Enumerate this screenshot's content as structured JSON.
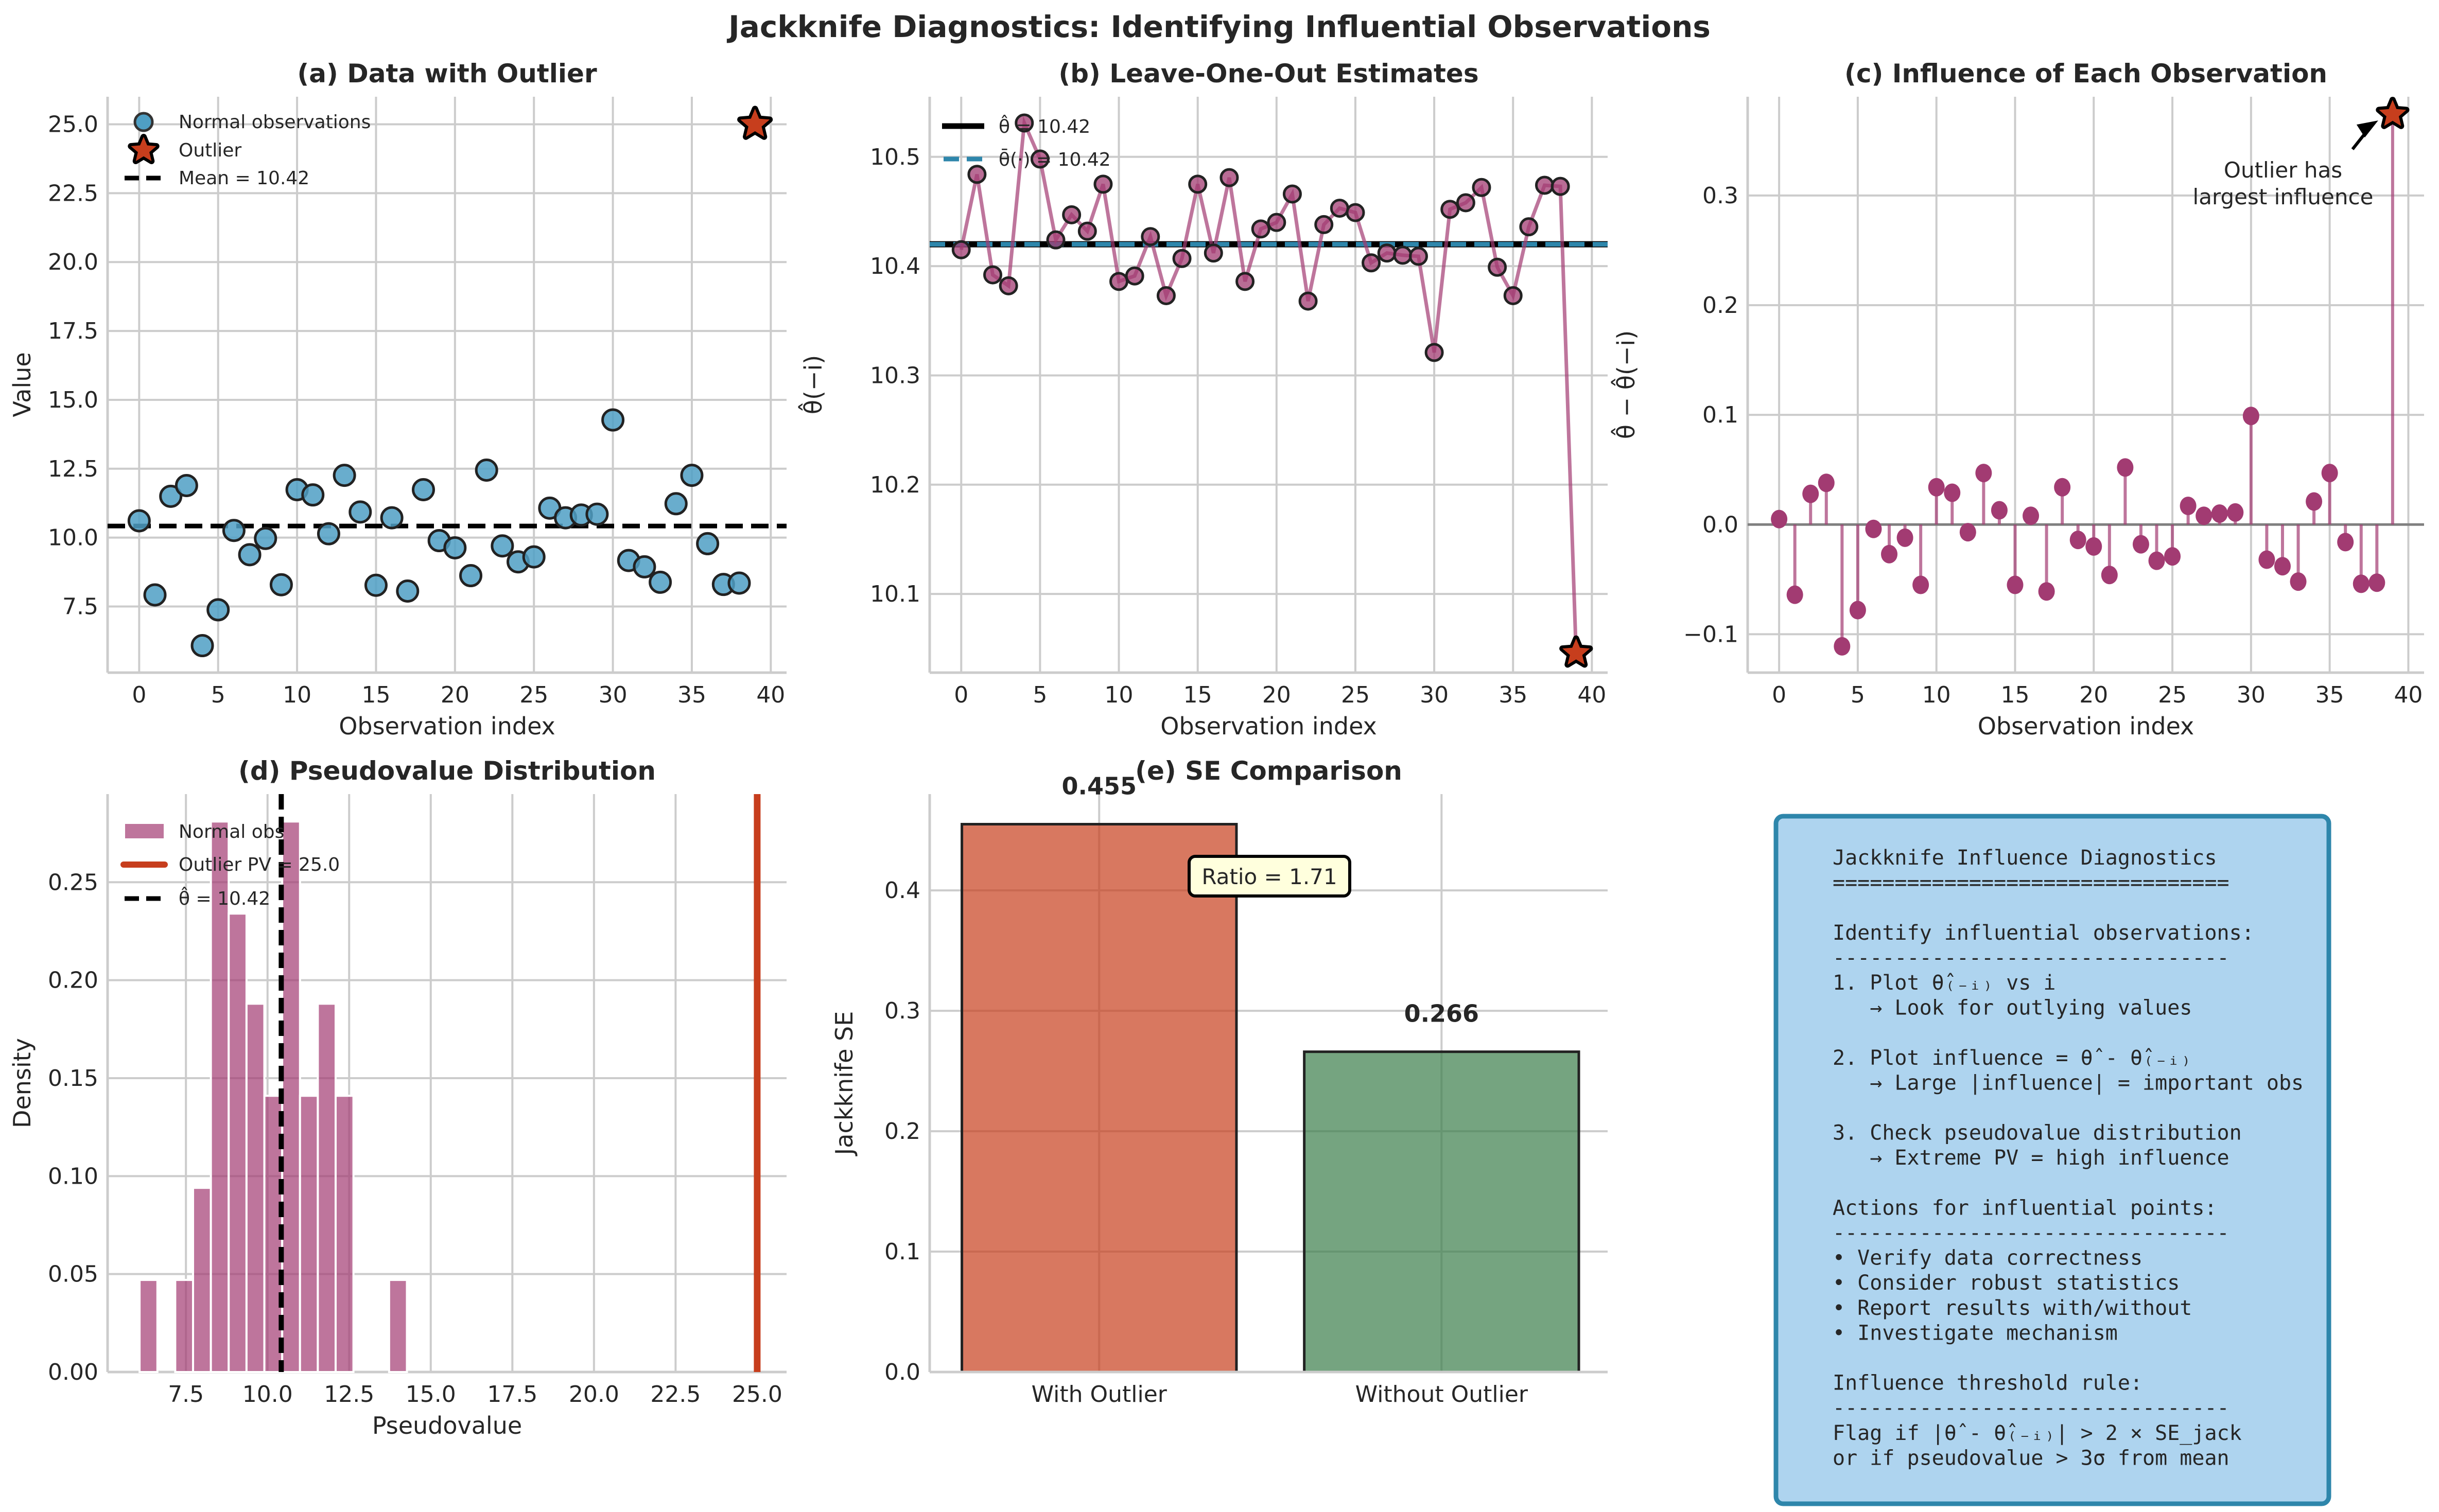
{
  "suptitle": "Jackknife Diagnostics: Identifying Influential Observations",
  "colors": {
    "normal": "#4f9fc4",
    "outlier": "#c73e1d",
    "loo": "#a23b72",
    "theta_bar": "#2e86ab",
    "with_outlier": "#c73e1d",
    "without_outlier": "#3b7d4a",
    "box_fill": "#aed4ef",
    "box_edge": "#2e86ab",
    "ratio_fill": "#ffffdd"
  },
  "chart_data": [
    {
      "id": "a",
      "type": "scatter",
      "title": "(a) Data with Outlier",
      "xlabel": "Observation index",
      "ylabel": "Value",
      "xlim": [
        -2,
        41
      ],
      "ylim": [
        5.1,
        26.0
      ],
      "xticks": [
        "0",
        "5",
        "10",
        "15",
        "20",
        "25",
        "30",
        "35",
        "40"
      ],
      "yticks": [
        "7.5",
        "10.0",
        "12.5",
        "15.0",
        "17.5",
        "20.0",
        "22.5",
        "25.0"
      ],
      "grid": true,
      "legend_position": "top-left",
      "legend": [
        "Normal observations",
        "Outlier",
        "Mean = 10.42"
      ],
      "mean": 10.42,
      "outlier": {
        "x": 39,
        "y": 25.0
      },
      "x": [
        0,
        1,
        2,
        3,
        4,
        5,
        6,
        7,
        8,
        9,
        10,
        11,
        12,
        13,
        14,
        15,
        16,
        17,
        18,
        19,
        20,
        21,
        22,
        23,
        24,
        25,
        26,
        27,
        28,
        29,
        30,
        31,
        32,
        33,
        34,
        35,
        36,
        37,
        38
      ],
      "y": [
        10.61,
        7.92,
        11.5,
        11.89,
        6.08,
        7.38,
        10.26,
        9.38,
        9.97,
        8.29,
        11.74,
        11.55,
        10.14,
        12.26,
        10.93,
        8.27,
        10.72,
        8.06,
        11.74,
        9.89,
        9.63,
        8.62,
        12.45,
        9.7,
        9.12,
        9.3,
        11.07,
        10.72,
        10.82,
        10.85,
        14.27,
        9.17,
        8.94,
        8.38,
        11.23,
        12.26,
        9.78,
        8.3,
        8.35
      ]
    },
    {
      "id": "b",
      "type": "line",
      "title": "(b) Leave-One-Out Estimates",
      "xlabel": "Observation index",
      "ylabel": "θ̂(−i)",
      "xlim": [
        -2,
        41
      ],
      "ylim": [
        10.028,
        10.555
      ],
      "xticks": [
        "0",
        "5",
        "10",
        "15",
        "20",
        "25",
        "30",
        "35",
        "40"
      ],
      "yticks": [
        "10.1",
        "10.2",
        "10.3",
        "10.4",
        "10.5"
      ],
      "grid": true,
      "legend_position": "top-left",
      "legend": [
        "θ̂ = 10.42",
        "θ̄(·) = 10.42"
      ],
      "theta_hat": 10.42,
      "theta_bar": 10.42,
      "x": [
        0,
        1,
        2,
        3,
        4,
        5,
        6,
        7,
        8,
        9,
        10,
        11,
        12,
        13,
        14,
        15,
        16,
        17,
        18,
        19,
        20,
        21,
        22,
        23,
        24,
        25,
        26,
        27,
        28,
        29,
        30,
        31,
        32,
        33,
        34,
        35,
        36,
        37,
        38,
        39
      ],
      "values": [
        10.415,
        10.484,
        10.392,
        10.382,
        10.531,
        10.498,
        10.424,
        10.447,
        10.432,
        10.475,
        10.386,
        10.391,
        10.427,
        10.373,
        10.407,
        10.475,
        10.412,
        10.481,
        10.386,
        10.434,
        10.44,
        10.466,
        10.368,
        10.438,
        10.453,
        10.449,
        10.403,
        10.412,
        10.41,
        10.409,
        10.321,
        10.452,
        10.458,
        10.472,
        10.399,
        10.373,
        10.436,
        10.474,
        10.473,
        10.046
      ],
      "outlier_index": 39
    },
    {
      "id": "c",
      "type": "stem",
      "title": "(c) Influence of Each Observation",
      "xlabel": "Observation index",
      "ylabel": "θ̂ − θ̂(−i)",
      "xlim": [
        -2,
        41
      ],
      "ylim": [
        -0.135,
        0.39
      ],
      "xticks": [
        "0",
        "5",
        "10",
        "15",
        "20",
        "25",
        "30",
        "35",
        "40"
      ],
      "yticks": [
        "−0.1",
        "0.0",
        "0.1",
        "0.2",
        "0.3"
      ],
      "ytick_values": [
        -0.1,
        0.0,
        0.1,
        0.2,
        0.3
      ],
      "grid": true,
      "annotation": [
        "Outlier has",
        "largest influence"
      ],
      "x": [
        0,
        1,
        2,
        3,
        4,
        5,
        6,
        7,
        8,
        9,
        10,
        11,
        12,
        13,
        14,
        15,
        16,
        17,
        18,
        19,
        20,
        21,
        22,
        23,
        24,
        25,
        26,
        27,
        28,
        29,
        30,
        31,
        32,
        33,
        34,
        35,
        36,
        37,
        38,
        39
      ],
      "values": [
        0.005,
        -0.064,
        0.028,
        0.038,
        -0.111,
        -0.078,
        -0.004,
        -0.027,
        -0.012,
        -0.055,
        0.034,
        0.029,
        -0.007,
        0.047,
        0.013,
        -0.055,
        0.008,
        -0.061,
        0.034,
        -0.014,
        -0.02,
        -0.046,
        0.052,
        -0.018,
        -0.033,
        -0.029,
        0.017,
        0.008,
        0.01,
        0.011,
        0.099,
        -0.032,
        -0.038,
        -0.052,
        0.021,
        0.047,
        -0.016,
        -0.054,
        -0.053,
        0.374
      ],
      "outlier_index": 39
    },
    {
      "id": "d",
      "type": "bar",
      "title": "(d) Pseudovalue Distribution",
      "xlabel": "Pseudovalue",
      "ylabel": "Density",
      "xlim": [
        5.1,
        25.9
      ],
      "ylim": [
        0,
        0.295
      ],
      "xticks": [
        "7.5",
        "10.0",
        "12.5",
        "15.0",
        "17.5",
        "20.0",
        "22.5",
        "25.0"
      ],
      "xtick_values": [
        7.5,
        10,
        12.5,
        15,
        17.5,
        20,
        22.5,
        25
      ],
      "yticks": [
        "0.00",
        "0.05",
        "0.10",
        "0.15",
        "0.20",
        "0.25"
      ],
      "ytick_values": [
        0,
        0.05,
        0.1,
        0.15,
        0.2,
        0.25
      ],
      "grid": true,
      "legend_position": "top-left",
      "legend": [
        "Normal obs",
        "Outlier PV = 25.0",
        "θ̂ = 10.42"
      ],
      "bin_start": 6.08,
      "bin_width": 0.546,
      "density": [
        0.047,
        0,
        0.047,
        0.094,
        0.281,
        0.234,
        0.188,
        0.141,
        0.281,
        0.141,
        0.188,
        0.141,
        0,
        0,
        0.047
      ],
      "outlier_pv": 25.0,
      "theta_hat": 10.42
    },
    {
      "id": "e",
      "type": "bar",
      "title": "(e) SE Comparison",
      "xlabel": "",
      "ylabel": "Jackknife SE",
      "ylim": [
        0,
        0.48
      ],
      "yticks": [
        "0.0",
        "0.1",
        "0.2",
        "0.3",
        "0.4"
      ],
      "ytick_values": [
        0,
        0.1,
        0.2,
        0.3,
        0.4
      ],
      "grid": true,
      "categories": [
        "With Outlier",
        "Without Outlier"
      ],
      "values": [
        0.455,
        0.266
      ],
      "value_labels": [
        "0.455",
        "0.266"
      ],
      "annotation": "Ratio = 1.71"
    }
  ],
  "summary_box": {
    "lines": [
      "Jackknife Influence Diagnostics",
      "================================",
      "",
      "Identify influential observations:",
      "--------------------------------",
      "1. Plot θ̂₍₋ᵢ₎ vs i",
      "   → Look for outlying values",
      "",
      "2. Plot influence = θ̂ - θ̂₍₋ᵢ₎",
      "   → Large |influence| = important obs",
      "",
      "3. Check pseudovalue distribution",
      "   → Extreme PV = high influence",
      "",
      "Actions for influential points:",
      "--------------------------------",
      "• Verify data correctness",
      "• Consider robust statistics",
      "• Report results with/without",
      "• Investigate mechanism",
      "",
      "Influence threshold rule:",
      "--------------------------------",
      "Flag if |θ̂ - θ̂₍₋ᵢ₎| > 2 × SE_jack",
      "or if pseudovalue > 3σ from mean"
    ]
  }
}
